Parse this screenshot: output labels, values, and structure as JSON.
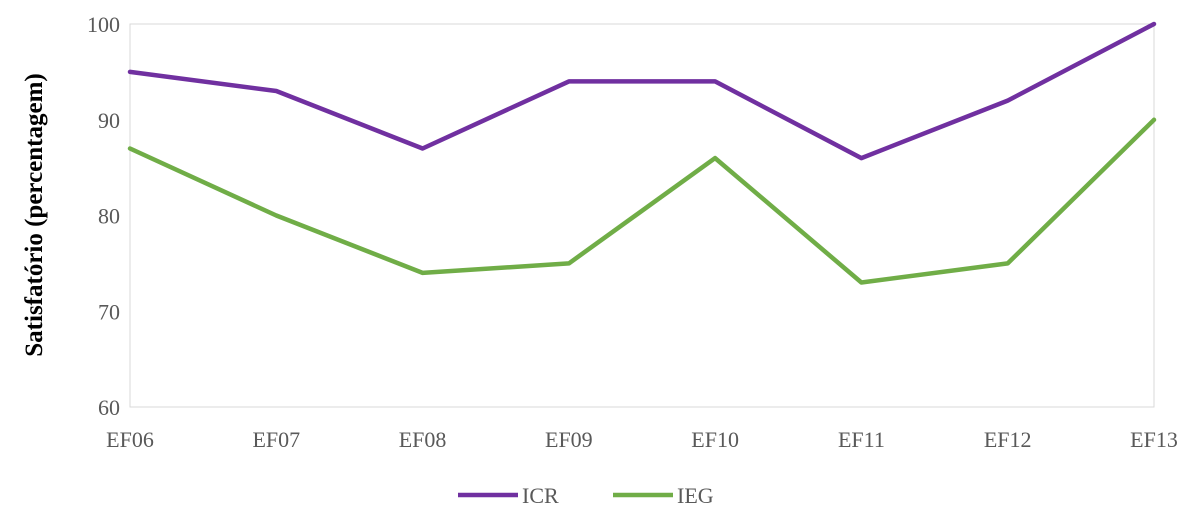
{
  "chart_data": {
    "type": "line",
    "title": "",
    "xlabel": "",
    "ylabel": "Satisfatório (percentagem)",
    "categories": [
      "EF06",
      "EF07",
      "EF08",
      "EF09",
      "EF10",
      "EF11",
      "EF12",
      "EF13"
    ],
    "ylim": [
      60,
      100
    ],
    "yticks": [
      60,
      70,
      80,
      90,
      100
    ],
    "grid": false,
    "legend_position": "bottom",
    "series": [
      {
        "name": "ICR",
        "color": "#7030a0",
        "values": [
          95,
          93,
          87,
          94,
          94,
          86,
          92,
          100
        ]
      },
      {
        "name": "IEG",
        "color": "#70ad47",
        "values": [
          87,
          80,
          74,
          75,
          86,
          73,
          75,
          90
        ]
      }
    ]
  }
}
